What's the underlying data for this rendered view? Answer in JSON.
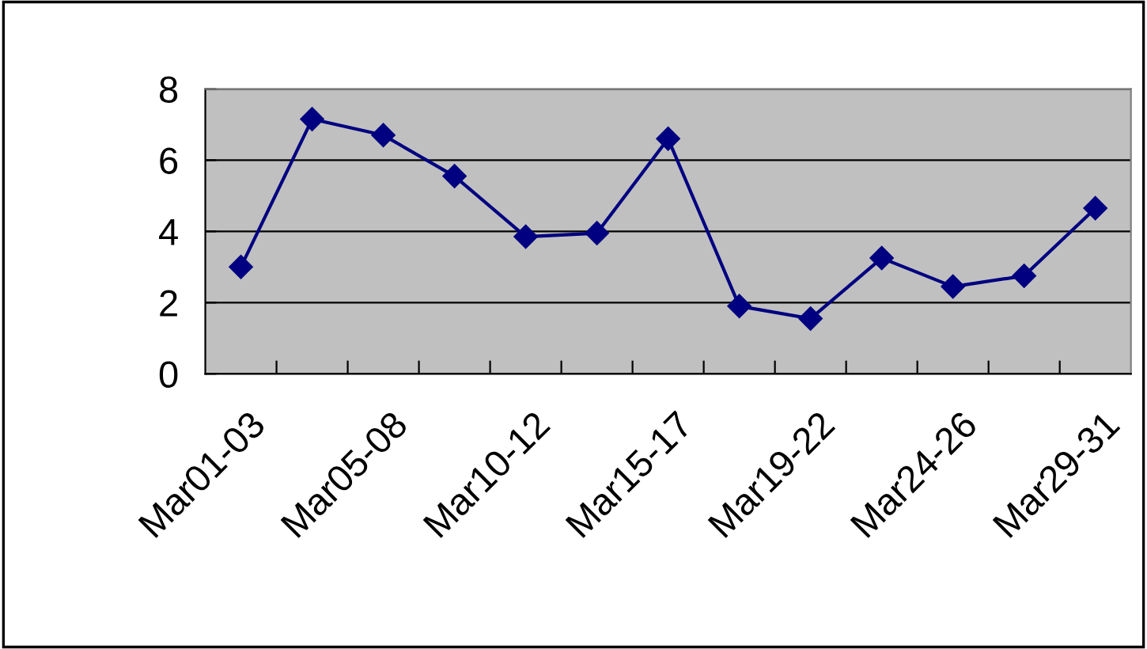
{
  "chart_data": {
    "type": "line",
    "categories": [
      "Mar01-03",
      null,
      "Mar05-08",
      null,
      "Mar10-12",
      null,
      "Mar15-17",
      null,
      "Mar19-22",
      null,
      "Mar24-26",
      null,
      "Mar29-31"
    ],
    "series": [
      {
        "color": "#000080",
        "values": [
          3.0,
          7.15,
          6.7,
          5.55,
          3.85,
          3.95,
          6.6,
          1.9,
          1.55,
          3.25,
          2.45,
          2.75,
          4.65
        ]
      }
    ],
    "ylim": [
      0,
      8
    ],
    "yticks": [
      0,
      2,
      4,
      6,
      8
    ],
    "grid": "y",
    "marker": "diamond",
    "line_style": "solid"
  }
}
